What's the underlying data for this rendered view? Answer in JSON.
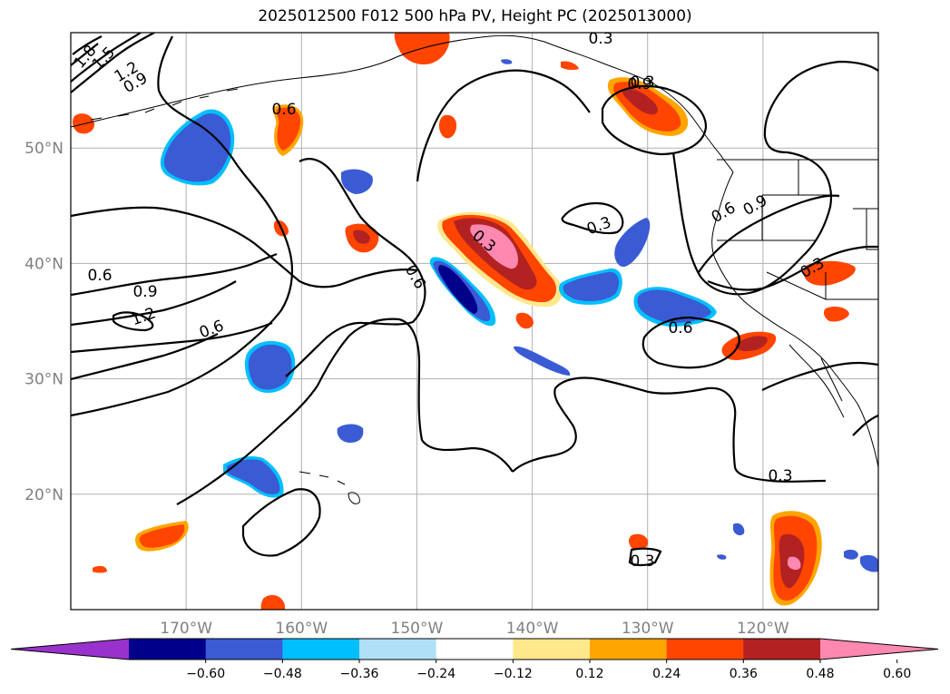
{
  "title": "2025012500 F012 500 hPa PV, Height PC (2025013000)",
  "map": {
    "lon_range": [
      -180,
      -110
    ],
    "lat_range": [
      10,
      60
    ],
    "grid": true,
    "lon_ticks": [
      -170,
      -160,
      -150,
      -140,
      -130,
      -120
    ],
    "lon_tick_labels": [
      "170°W",
      "160°W",
      "150°W",
      "140°W",
      "130°W",
      "120°W"
    ],
    "lat_ticks": [
      20,
      30,
      40,
      50
    ],
    "lat_tick_labels": [
      "20°N",
      "30°N",
      "40°N",
      "50°N"
    ],
    "contour_labels": [
      "1.8",
      "1.5",
      "1.2",
      "0.9",
      "0.6",
      "0.9",
      "0.6",
      "0.9",
      "1.2",
      "0.6",
      "0.6",
      "0.3",
      "0.3",
      "0.3",
      "0.3",
      "0.6",
      "0.9",
      "0.3",
      "0.6",
      "0.3",
      "0.3"
    ]
  },
  "colorbar": {
    "levels": [
      "−0.60",
      "−0.48",
      "−0.36",
      "−0.24",
      "−0.12",
      "0.12",
      "0.24",
      "0.36",
      "0.48",
      "0.60"
    ],
    "colors": [
      "#9932cc",
      "#00008b",
      "#3a5bd4",
      "#00bfff",
      "#b0e0f8",
      "#ffffff",
      "#ffe88c",
      "#ffa500",
      "#ff4500",
      "#b22222",
      "#ff88b0"
    ],
    "extend": "both"
  }
}
